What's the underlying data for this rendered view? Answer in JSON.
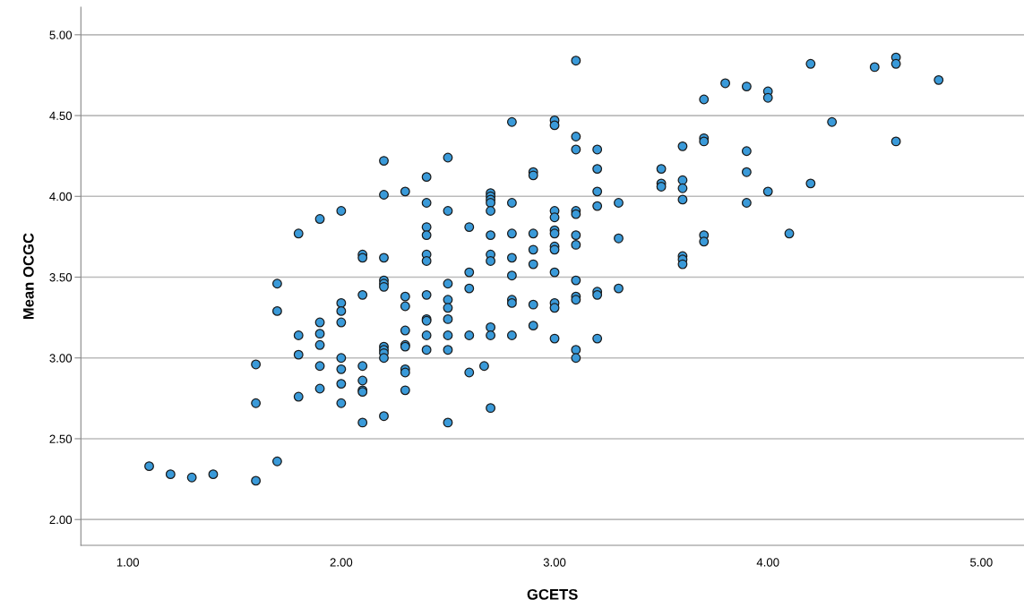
{
  "chart_data": {
    "type": "scatter",
    "xlabel": "GCETS",
    "ylabel": "Mean OCGC",
    "xlim": [
      0.78,
      5.2
    ],
    "ylim": [
      1.84,
      5.17
    ],
    "xticks": [
      {
        "value": 1,
        "label": "1.00"
      },
      {
        "value": 2,
        "label": "2.00"
      },
      {
        "value": 3,
        "label": "3.00"
      },
      {
        "value": 4,
        "label": "4.00"
      },
      {
        "value": 5,
        "label": "5.00"
      }
    ],
    "yticks": [
      {
        "value": 2,
        "label": "2.00"
      },
      {
        "value": 2.5,
        "label": "2.50"
      },
      {
        "value": 3,
        "label": "3.00"
      },
      {
        "value": 3.5,
        "label": "3.50"
      },
      {
        "value": 4,
        "label": "4.00"
      },
      {
        "value": 4.5,
        "label": "4.50"
      },
      {
        "value": 5,
        "label": "5.00"
      }
    ],
    "grid": "y",
    "marker": "circle",
    "series": [
      {
        "color": "#3a9ad9",
        "x": [
          1.1,
          1.2,
          1.3,
          1.4,
          1.6,
          1.6,
          1.6,
          1.7,
          1.7,
          1.7,
          1.8,
          1.8,
          1.8,
          1.8,
          1.9,
          1.9,
          1.9,
          1.9,
          1.9,
          1.9,
          2.0,
          2.0,
          2.0,
          2.0,
          2.0,
          2.0,
          2.0,
          2.0,
          2.1,
          2.1,
          2.1,
          2.1,
          2.1,
          2.1,
          2.1,
          2.1,
          2.2,
          2.2,
          2.2,
          2.2,
          2.2,
          2.2,
          2.2,
          2.2,
          2.2,
          2.2,
          2.2,
          2.3,
          2.3,
          2.3,
          2.3,
          2.3,
          2.3,
          2.3,
          2.3,
          2.3,
          2.4,
          2.4,
          2.4,
          2.4,
          2.4,
          2.4,
          2.4,
          2.4,
          2.4,
          2.4,
          2.4,
          2.5,
          2.5,
          2.5,
          2.5,
          2.5,
          2.5,
          2.5,
          2.5,
          2.5,
          2.6,
          2.6,
          2.6,
          2.6,
          2.6,
          2.67,
          2.7,
          2.7,
          2.7,
          2.7,
          2.7,
          2.7,
          2.7,
          2.7,
          2.7,
          2.7,
          2.7,
          2.8,
          2.8,
          2.8,
          2.8,
          2.8,
          2.8,
          2.8,
          2.8,
          2.9,
          2.9,
          2.9,
          2.9,
          2.9,
          2.9,
          2.9,
          3.0,
          3.0,
          3.0,
          3.0,
          3.0,
          3.0,
          3.0,
          3.0,
          3.0,
          3.0,
          3.0,
          3.0,
          3.1,
          3.1,
          3.1,
          3.1,
          3.1,
          3.1,
          3.1,
          3.1,
          3.1,
          3.1,
          3.1,
          3.1,
          3.2,
          3.2,
          3.2,
          3.2,
          3.2,
          3.2,
          3.2,
          3.3,
          3.3,
          3.3,
          3.5,
          3.5,
          3.5,
          3.6,
          3.6,
          3.6,
          3.6,
          3.6,
          3.6,
          3.6,
          3.7,
          3.7,
          3.7,
          3.7,
          3.7,
          3.8,
          3.9,
          3.9,
          3.9,
          3.9,
          4.0,
          4.0,
          4.0,
          4.1,
          4.2,
          4.2,
          4.3,
          4.5,
          4.6,
          4.6,
          4.6,
          4.8
        ],
        "values": [
          2.33,
          2.28,
          2.26,
          2.28,
          2.96,
          2.72,
          2.24,
          3.46,
          3.29,
          2.36,
          3.77,
          3.14,
          3.02,
          2.76,
          3.86,
          3.22,
          3.15,
          3.08,
          2.95,
          2.81,
          3.91,
          3.34,
          3.29,
          3.22,
          3.0,
          2.93,
          2.84,
          2.72,
          3.64,
          3.62,
          3.39,
          2.95,
          2.86,
          2.8,
          2.79,
          2.6,
          4.22,
          4.01,
          3.62,
          3.48,
          3.46,
          3.44,
          3.07,
          3.05,
          3.03,
          3.0,
          2.64,
          4.03,
          3.38,
          3.32,
          3.17,
          3.08,
          3.07,
          2.93,
          2.91,
          2.8,
          4.12,
          3.96,
          3.81,
          3.76,
          3.64,
          3.6,
          3.39,
          3.24,
          3.23,
          3.14,
          3.05,
          4.24,
          3.91,
          3.46,
          3.36,
          3.31,
          3.24,
          3.14,
          3.05,
          2.6,
          3.81,
          3.53,
          3.43,
          3.14,
          2.91,
          2.95,
          4.02,
          4.0,
          3.98,
          3.96,
          3.91,
          3.76,
          3.64,
          3.6,
          3.19,
          3.14,
          2.69,
          4.46,
          3.96,
          3.77,
          3.62,
          3.51,
          3.36,
          3.34,
          3.14,
          4.15,
          4.13,
          3.77,
          3.67,
          3.58,
          3.33,
          3.2,
          4.47,
          4.44,
          3.91,
          3.87,
          3.79,
          3.77,
          3.69,
          3.67,
          3.53,
          3.34,
          3.31,
          3.12,
          4.84,
          4.37,
          4.29,
          3.91,
          3.89,
          3.76,
          3.7,
          3.48,
          3.38,
          3.36,
          3.05,
          3.0,
          4.29,
          4.17,
          4.03,
          3.94,
          3.41,
          3.39,
          3.12,
          3.96,
          3.74,
          3.43,
          4.17,
          4.08,
          4.06,
          4.31,
          4.1,
          4.05,
          3.98,
          3.63,
          3.61,
          3.58,
          4.6,
          4.36,
          4.34,
          3.76,
          3.72,
          4.7,
          4.68,
          4.28,
          4.15,
          3.96,
          4.65,
          4.61,
          4.03,
          3.77,
          4.82,
          4.08,
          4.46,
          4.8,
          4.86,
          4.82,
          4.34,
          4.72
        ]
      }
    ]
  }
}
